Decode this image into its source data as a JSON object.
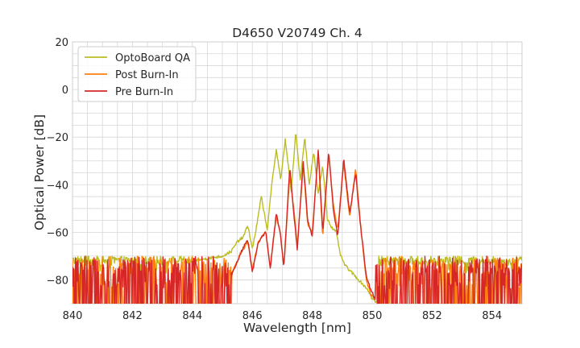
{
  "chart_data": {
    "type": "line",
    "title": "D4650 V20749 Ch. 4",
    "xlabel": "Wavelength [nm]",
    "ylabel": "Optical Power [dB]",
    "xlim": [
      840,
      855
    ],
    "ylim": [
      -90,
      20
    ],
    "xticks": [
      "840",
      "842",
      "844",
      "846",
      "848",
      "850",
      "852",
      "854"
    ],
    "yticks": [
      "−80",
      "−60",
      "−40",
      "−20",
      "0",
      "20"
    ],
    "grid": true,
    "legend_position": "top-left",
    "series": [
      {
        "name": "OptoBoard QA",
        "color": "#bcbd22",
        "noise_floor": -74,
        "x": [
          844.0,
          844.5,
          845.0,
          845.3,
          845.5,
          845.7,
          845.85,
          846.0,
          846.15,
          846.3,
          846.5,
          846.65,
          846.8,
          846.95,
          847.1,
          847.3,
          847.45,
          847.6,
          847.75,
          847.9,
          848.05,
          848.2,
          848.35,
          848.5,
          848.65,
          848.8,
          848.95,
          849.1,
          849.25,
          849.4,
          849.55,
          849.7,
          849.85,
          850.0,
          850.2
        ],
        "y": [
          -72,
          -71,
          -70,
          -68,
          -64,
          -62,
          -57,
          -67,
          -57,
          -45,
          -59,
          -40,
          -25,
          -38,
          -21,
          -43,
          -18,
          -38,
          -20,
          -40,
          -26,
          -44,
          -32,
          -54,
          -58,
          -60,
          -70,
          -74,
          -76,
          -78,
          -80,
          -82,
          -84,
          -88,
          -90
        ]
      },
      {
        "name": "Post Burn-In",
        "color": "#ff7f0e",
        "noise_floor": -82,
        "x": [
          845.3,
          845.6,
          845.85,
          846.0,
          846.2,
          846.45,
          846.6,
          846.8,
          846.95,
          847.05,
          847.25,
          847.4,
          847.5,
          847.7,
          847.85,
          848.0,
          848.2,
          848.35,
          848.55,
          848.7,
          848.85,
          849.05,
          849.25,
          849.45,
          849.6,
          849.8,
          849.95,
          850.1
        ],
        "y": [
          -78,
          -69,
          -64,
          -76,
          -64,
          -60,
          -75,
          -53,
          -61,
          -75,
          -36,
          -52,
          -66,
          -32,
          -57,
          -60,
          -27,
          -62,
          -27,
          -48,
          -59,
          -31,
          -54,
          -33,
          -55,
          -80,
          -86,
          -88
        ]
      },
      {
        "name": "Pre Burn-In",
        "color": "#d62728",
        "noise_floor": -82,
        "x": [
          845.3,
          845.6,
          845.85,
          846.0,
          846.2,
          846.45,
          846.6,
          846.8,
          846.95,
          847.05,
          847.25,
          847.4,
          847.5,
          847.7,
          847.85,
          848.0,
          848.2,
          848.35,
          848.55,
          848.7,
          848.85,
          849.05,
          849.25,
          849.45,
          849.6,
          849.8,
          849.95,
          850.1
        ],
        "y": [
          -78,
          -69,
          -63,
          -77,
          -64,
          -60,
          -75,
          -52,
          -62,
          -75,
          -33,
          -54,
          -67,
          -30,
          -55,
          -62,
          -25,
          -60,
          -26,
          -50,
          -62,
          -29,
          -52,
          -35,
          -56,
          -78,
          -84,
          -88
        ]
      }
    ]
  }
}
